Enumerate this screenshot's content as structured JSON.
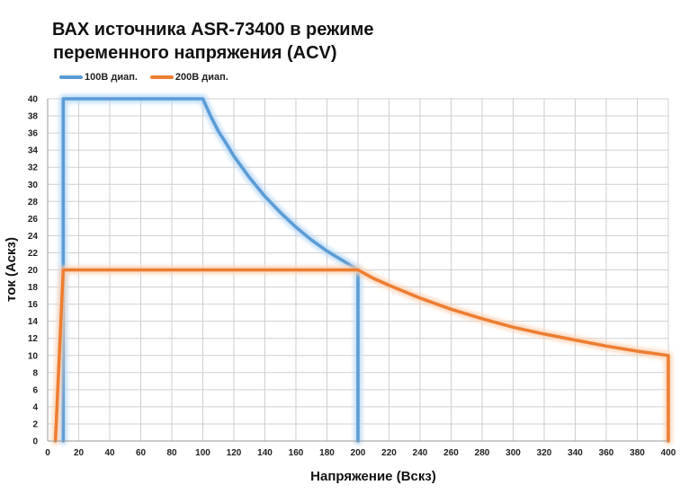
{
  "chart_data": {
    "type": "line",
    "title_lines": [
      "ВАХ источника ASR-73400 в режиме",
      "переменного напряжения (ACV)"
    ],
    "xlabel": "Напряжение (Вскз)",
    "ylabel": "ток (Аскз)",
    "xlim": [
      0,
      400
    ],
    "ylim": [
      0,
      40
    ],
    "x_ticks": [
      0,
      20,
      40,
      60,
      80,
      100,
      120,
      140,
      160,
      180,
      200,
      220,
      240,
      260,
      280,
      300,
      320,
      340,
      360,
      380,
      400
    ],
    "y_ticks": [
      0,
      2,
      4,
      6,
      8,
      10,
      12,
      14,
      16,
      18,
      20,
      22,
      24,
      26,
      28,
      30,
      32,
      34,
      36,
      38,
      40
    ],
    "grid": true,
    "legend_position": "top-left",
    "series": [
      {
        "name": "100В диап.",
        "color": "#5b9bd5",
        "glow": "#b8d8f6",
        "x": [
          10,
          10,
          100,
          105,
          110,
          115,
          120,
          130,
          140,
          150,
          160,
          170,
          180,
          190,
          200,
          200
        ],
        "y": [
          0,
          40,
          40,
          38,
          36.2,
          34.8,
          33.3,
          30.8,
          28.6,
          26.7,
          25,
          23.5,
          22.2,
          21.1,
          20,
          0
        ]
      },
      {
        "name": "200В диап.",
        "color": "#ed7d31",
        "glow": "#fbd2b4",
        "x": [
          5,
          10,
          200,
          210,
          220,
          240,
          260,
          280,
          300,
          320,
          340,
          360,
          380,
          400,
          400
        ],
        "y": [
          0,
          20,
          20,
          19,
          18.2,
          16.7,
          15.4,
          14.3,
          13.3,
          12.5,
          11.8,
          11.1,
          10.5,
          10,
          0
        ]
      }
    ]
  }
}
